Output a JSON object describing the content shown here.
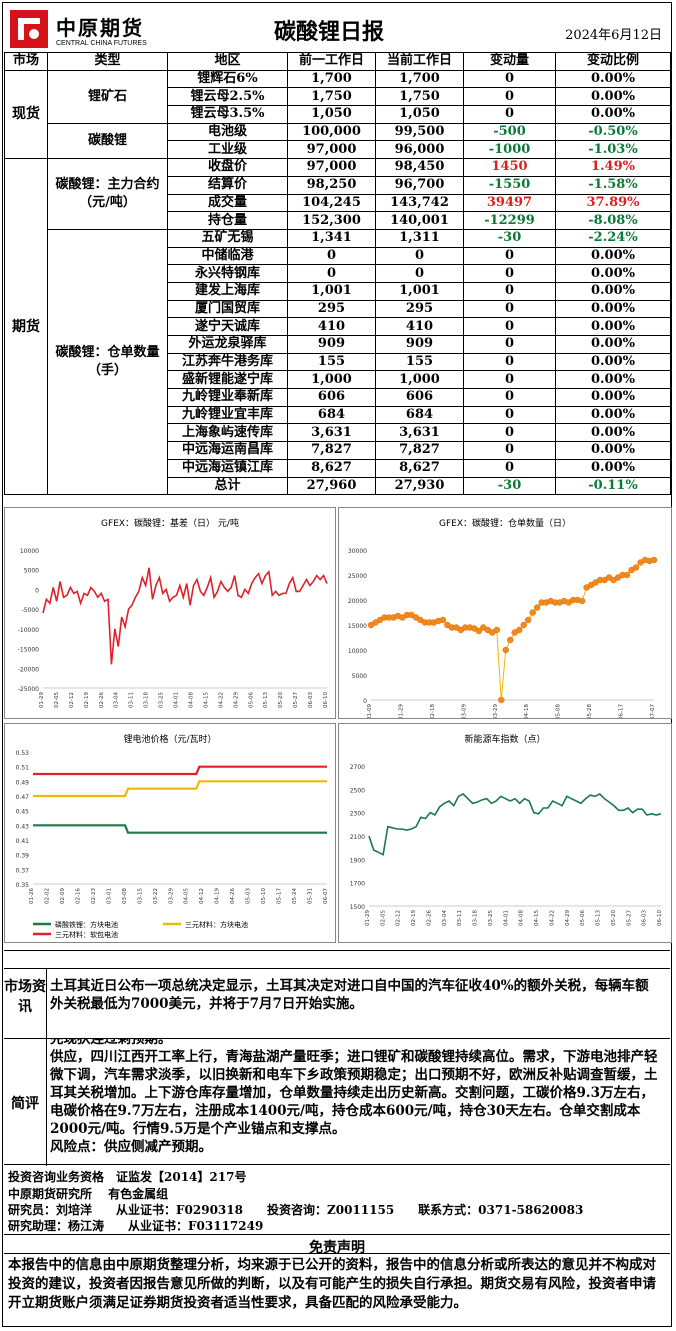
{
  "header": {
    "logo_name": "中原期货",
    "logo_sub": "CENTRAL CHINA FUTURES",
    "title": "碳酸锂日报",
    "date": "2024年6月12日"
  },
  "table": {
    "headers": [
      "市场",
      "类型",
      "地区",
      "前一工作日",
      "当前工作日",
      "变动量",
      "变动比例"
    ],
    "markets": {
      "spot": "现货",
      "futures": "期货"
    },
    "types": {
      "ore": "锂矿石",
      "carbonate": "碳酸锂",
      "main": "碳酸锂：主力合约（元/吨）",
      "warrant": "碳酸锂：仓单数量（手）"
    },
    "spot_rows": [
      {
        "name": "锂辉石6%",
        "prev": "1,700",
        "cur": "1,700",
        "chg": "0",
        "pct": "0.00%",
        "dir": "zero"
      },
      {
        "name": "锂云母2.5%",
        "prev": "1,750",
        "cur": "1,750",
        "chg": "0",
        "pct": "0.00%",
        "dir": "zero"
      },
      {
        "name": "锂云母3.5%",
        "prev": "1,050",
        "cur": "1,050",
        "chg": "0",
        "pct": "0.00%",
        "dir": "zero"
      },
      {
        "name": "电池级",
        "prev": "100,000",
        "cur": "99,500",
        "chg": "-500",
        "pct": "-0.50%",
        "dir": "neg"
      },
      {
        "name": "工业级",
        "prev": "97,000",
        "cur": "96,000",
        "chg": "-1000",
        "pct": "-1.03%",
        "dir": "neg"
      }
    ],
    "main_rows": [
      {
        "name": "收盘价",
        "prev": "97,000",
        "cur": "98,450",
        "chg": "1450",
        "pct": "1.49%",
        "dir": "pos"
      },
      {
        "name": "结算价",
        "prev": "98,250",
        "cur": "96,700",
        "chg": "-1550",
        "pct": "-1.58%",
        "dir": "neg"
      },
      {
        "name": "成交量",
        "prev": "104,245",
        "cur": "143,742",
        "chg": "39497",
        "pct": "37.89%",
        "dir": "pos"
      },
      {
        "name": "持仓量",
        "prev": "152,300",
        "cur": "140,001",
        "chg": "-12299",
        "pct": "-8.08%",
        "dir": "neg"
      }
    ],
    "warrant_rows": [
      {
        "name": "五矿无锡",
        "prev": "1,341",
        "cur": "1,311",
        "chg": "-30",
        "pct": "-2.24%",
        "dir": "neg"
      },
      {
        "name": "中储临港",
        "prev": "0",
        "cur": "0",
        "chg": "0",
        "pct": "0.00%",
        "dir": "zero"
      },
      {
        "name": "永兴特钢库",
        "prev": "0",
        "cur": "0",
        "chg": "0",
        "pct": "0.00%",
        "dir": "zero"
      },
      {
        "name": "建发上海库",
        "prev": "1,001",
        "cur": "1,001",
        "chg": "0",
        "pct": "0.00%",
        "dir": "zero"
      },
      {
        "name": "厦门国贸库",
        "prev": "295",
        "cur": "295",
        "chg": "0",
        "pct": "0.00%",
        "dir": "zero"
      },
      {
        "name": "遂宁天诚库",
        "prev": "410",
        "cur": "410",
        "chg": "0",
        "pct": "0.00%",
        "dir": "zero"
      },
      {
        "name": "外运龙泉驿库",
        "prev": "909",
        "cur": "909",
        "chg": "0",
        "pct": "0.00%",
        "dir": "zero"
      },
      {
        "name": "江苏奔牛港务库",
        "prev": "155",
        "cur": "155",
        "chg": "0",
        "pct": "0.00%",
        "dir": "zero"
      },
      {
        "name": "盛新锂能遂宁库",
        "prev": "1,000",
        "cur": "1,000",
        "chg": "0",
        "pct": "0.00%",
        "dir": "zero"
      },
      {
        "name": "九岭锂业奉新库",
        "prev": "606",
        "cur": "606",
        "chg": "0",
        "pct": "0.00%",
        "dir": "zero"
      },
      {
        "name": "九岭锂业宜丰库",
        "prev": "684",
        "cur": "684",
        "chg": "0",
        "pct": "0.00%",
        "dir": "zero"
      },
      {
        "name": "上海象屿速传库",
        "prev": "3,631",
        "cur": "3,631",
        "chg": "0",
        "pct": "0.00%",
        "dir": "zero"
      },
      {
        "name": "中远海运南昌库",
        "prev": "7,827",
        "cur": "7,827",
        "chg": "0",
        "pct": "0.00%",
        "dir": "zero"
      },
      {
        "name": "中远海运镇江库",
        "prev": "8,627",
        "cur": "8,627",
        "chg": "0",
        "pct": "0.00%",
        "dir": "zero"
      },
      {
        "name": "总计",
        "prev": "27,960",
        "cur": "27,930",
        "chg": "-30",
        "pct": "-0.11%",
        "dir": "neg"
      }
    ]
  },
  "chart_data": [
    {
      "type": "line",
      "title": "GFEX：碳酸锂：基差（日） 元/吨",
      "ylim": [
        -25000,
        10000
      ],
      "yticks": [
        "10000",
        "5000",
        "0",
        "-5000",
        "-10000",
        "-15000",
        "-20000",
        "-25000"
      ],
      "xticks": [
        "01-29",
        "02-05",
        "02-12",
        "02-19",
        "02-26",
        "03-04",
        "03-11",
        "03-18",
        "03-25",
        "04-01",
        "04-08",
        "04-15",
        "04-22",
        "04-29",
        "05-06",
        "05-13",
        "05-20",
        "05-27",
        "06-03",
        "06-10"
      ],
      "color": "#e0202a",
      "values": [
        -6000,
        -2500,
        -3500,
        500,
        -3000,
        2000,
        -2000,
        -1500,
        500,
        -1000,
        -500,
        -3500,
        -1000,
        -1500,
        500,
        -500,
        -2000,
        -1000,
        -3000,
        -2500,
        -19000,
        -10000,
        -14500,
        -7000,
        -9500,
        -5000,
        -4000,
        -2000,
        -500,
        3000,
        1000,
        5500,
        -2500,
        1000,
        3000,
        -1000,
        0,
        -3000,
        -2000,
        -1500,
        1000,
        -2000,
        1500,
        -4000,
        1000,
        2500,
        -500,
        -1500,
        500,
        3000,
        -2000,
        -500,
        2000,
        500,
        -500,
        500,
        3500,
        -1500,
        -2000,
        0,
        -1000,
        1500,
        3000,
        4000,
        1500,
        3500,
        4500,
        -1500,
        -500,
        -1500,
        -1000,
        -1000,
        1500,
        3000,
        -500,
        -500,
        1000,
        2500,
        1000,
        2000,
        3500,
        2500,
        3500,
        1500
      ]
    },
    {
      "type": "scatter",
      "title": "GFEX：碳酸锂：仓单数量（日）",
      "ylim": [
        0,
        30000
      ],
      "yticks": [
        "30000",
        "25000",
        "20000",
        "15000",
        "10000",
        "5000",
        "0"
      ],
      "xticks": [
        "01-09",
        "01-29",
        "02-18",
        "03-09",
        "03-29",
        "04-18",
        "05-08",
        "05-28",
        "06-17",
        "07-07"
      ],
      "color": "#f08a1a",
      "values": [
        15000,
        15500,
        16000,
        16500,
        16500,
        16500,
        16800,
        16500,
        17000,
        17000,
        16500,
        16000,
        15500,
        15500,
        15500,
        15800,
        16000,
        15000,
        14500,
        14500,
        14000,
        14500,
        14500,
        14300,
        13800,
        14500,
        14000,
        13500,
        14000,
        0,
        10000,
        12000,
        13500,
        14000,
        15000,
        16000,
        17500,
        18500,
        19500,
        19500,
        19800,
        19500,
        19500,
        19800,
        19500,
        20000,
        20000,
        19800,
        22500,
        23000,
        23500,
        24000,
        24000,
        24500,
        24000,
        24500,
        25000,
        25000,
        26000,
        26500,
        27500,
        28000,
        27800,
        28000
      ]
    },
    {
      "type": "line",
      "title": "锂电池价格（元/瓦时）",
      "ylim": [
        0.35,
        0.53
      ],
      "yticks": [
        "0.53",
        "0.51",
        "0.49",
        "0.47",
        "0.45",
        "0.43",
        "0.41",
        "0.39",
        "0.37",
        "0.35"
      ],
      "xticks": [
        "01-26",
        "02-02",
        "02-09",
        "02-16",
        "02-23",
        "03-01",
        "03-08",
        "03-15",
        "03-22",
        "03-29",
        "04-05",
        "04-12",
        "04-19",
        "04-26",
        "05-03",
        "05-10",
        "05-17",
        "05-24",
        "05-31",
        "06-07"
      ],
      "series": [
        {
          "name": "磷酸铁锂：方块电池",
          "color": "#1a7a4a",
          "values": [
            0.43,
            0.43,
            0.43,
            0.43,
            0.43,
            0.43,
            0.43,
            0.43,
            0.43,
            0.43,
            0.43,
            0.43,
            0.43,
            0.43,
            0.43,
            0.43,
            0.43,
            0.43,
            0.43,
            0.43,
            0.43,
            0.43,
            0.43,
            0.43,
            0.43,
            0.43,
            0.43,
            0.43,
            0.43,
            0.43,
            0.43,
            0.43,
            0.42,
            0.42,
            0.42,
            0.42,
            0.42,
            0.42,
            0.42,
            0.42,
            0.42,
            0.42,
            0.42,
            0.42,
            0.42,
            0.42,
            0.42,
            0.42,
            0.42,
            0.42,
            0.42,
            0.42,
            0.42,
            0.42,
            0.42,
            0.42,
            0.42,
            0.42,
            0.42,
            0.42,
            0.42,
            0.42,
            0.42,
            0.42,
            0.42,
            0.42,
            0.42,
            0.42,
            0.42,
            0.42,
            0.42,
            0.42,
            0.42,
            0.42,
            0.42,
            0.42,
            0.42,
            0.42,
            0.42,
            0.42,
            0.42,
            0.42,
            0.42,
            0.42,
            0.42,
            0.42,
            0.42,
            0.42,
            0.42,
            0.42,
            0.42,
            0.42,
            0.42,
            0.42,
            0.42,
            0.42,
            0.42,
            0.42,
            0.42,
            0.42
          ]
        },
        {
          "name": "三元材料：方块电池",
          "color": "#f0b800",
          "values": [
            0.47,
            0.47,
            0.47,
            0.47,
            0.47,
            0.47,
            0.47,
            0.47,
            0.47,
            0.47,
            0.47,
            0.47,
            0.47,
            0.47,
            0.47,
            0.47,
            0.47,
            0.47,
            0.47,
            0.47,
            0.47,
            0.47,
            0.47,
            0.47,
            0.47,
            0.47,
            0.47,
            0.47,
            0.47,
            0.47,
            0.47,
            0.47,
            0.48,
            0.48,
            0.48,
            0.48,
            0.48,
            0.48,
            0.48,
            0.48,
            0.48,
            0.48,
            0.48,
            0.48,
            0.48,
            0.48,
            0.48,
            0.48,
            0.48,
            0.48,
            0.48,
            0.48,
            0.48,
            0.48,
            0.48,
            0.48,
            0.49,
            0.49,
            0.49,
            0.49,
            0.49,
            0.49,
            0.49,
            0.49,
            0.49,
            0.49,
            0.49,
            0.49,
            0.49,
            0.49,
            0.49,
            0.49,
            0.49,
            0.49,
            0.49,
            0.49,
            0.49,
            0.49,
            0.49,
            0.49,
            0.49,
            0.49,
            0.49,
            0.49,
            0.49,
            0.49,
            0.49,
            0.49,
            0.49,
            0.49,
            0.49,
            0.49,
            0.49,
            0.49,
            0.49,
            0.49,
            0.49,
            0.49,
            0.49,
            0.49
          ]
        },
        {
          "name": "三元材料：软包电池",
          "color": "#e0202a",
          "values": [
            0.5,
            0.5,
            0.5,
            0.5,
            0.5,
            0.5,
            0.5,
            0.5,
            0.5,
            0.5,
            0.5,
            0.5,
            0.5,
            0.5,
            0.5,
            0.5,
            0.5,
            0.5,
            0.5,
            0.5,
            0.5,
            0.5,
            0.5,
            0.5,
            0.5,
            0.5,
            0.5,
            0.5,
            0.5,
            0.5,
            0.5,
            0.5,
            0.5,
            0.5,
            0.5,
            0.5,
            0.5,
            0.5,
            0.5,
            0.5,
            0.5,
            0.5,
            0.5,
            0.5,
            0.5,
            0.5,
            0.5,
            0.5,
            0.5,
            0.5,
            0.5,
            0.5,
            0.5,
            0.5,
            0.5,
            0.5,
            0.51,
            0.51,
            0.51,
            0.51,
            0.51,
            0.51,
            0.51,
            0.51,
            0.51,
            0.51,
            0.51,
            0.51,
            0.51,
            0.51,
            0.51,
            0.51,
            0.51,
            0.51,
            0.51,
            0.51,
            0.51,
            0.51,
            0.51,
            0.51,
            0.51,
            0.51,
            0.51,
            0.51,
            0.51,
            0.51,
            0.51,
            0.51,
            0.51,
            0.51,
            0.51,
            0.51,
            0.51,
            0.51,
            0.51,
            0.51,
            0.51,
            0.51,
            0.51,
            0.51
          ]
        }
      ]
    },
    {
      "type": "line",
      "title": "新能源车指数（点）",
      "ylim": [
        1500,
        2700
      ],
      "yticks": [
        "2700",
        "2500",
        "2300",
        "2100",
        "1900",
        "1700",
        "1500"
      ],
      "xticks": [
        "01-29",
        "02-05",
        "02-12",
        "02-19",
        "02-26",
        "03-04",
        "03-11",
        "03-18",
        "03-25",
        "04-01",
        "04-08",
        "04-15",
        "04-22",
        "04-29",
        "05-06",
        "05-13",
        "05-20",
        "05-27",
        "06-03",
        "06-10"
      ],
      "color": "#1a7a4a",
      "values": [
        2100,
        1980,
        1960,
        1940,
        2180,
        2170,
        2160,
        2160,
        2150,
        2160,
        2180,
        2260,
        2250,
        2300,
        2280,
        2350,
        2380,
        2400,
        2360,
        2440,
        2460,
        2420,
        2380,
        2390,
        2410,
        2420,
        2380,
        2400,
        2440,
        2420,
        2400,
        2420,
        2380,
        2420,
        2400,
        2300,
        2290,
        2340,
        2340,
        2400,
        2380,
        2360,
        2440,
        2420,
        2400,
        2380,
        2420,
        2450,
        2440,
        2460,
        2420,
        2390,
        2360,
        2320,
        2320,
        2340,
        2300,
        2330,
        2330,
        2280,
        2290,
        2280,
        2290
      ]
    }
  ],
  "news": {
    "label": "市场资讯",
    "text": "土耳其近日公布一项总统决定显示，土耳其决定对进口自中国的汽车征收40%的额外关税，每辆车额外关税最低为7000美元，并将于7月7日开始实施。"
  },
  "review": {
    "label": "简评",
    "cut": "完现狄连过剩预期。",
    "text": "供应，四川江西开工率上行，青海盐湖产量旺季；进口锂矿和碳酸锂持续高位。需求，下游电池排产轻微下调，汽车需求淡季，以旧换新和电车下乡政策预期稳定；出口预期不好，欧洲反补贴调查暂缓，土耳其关税增加。上下游仓库存量增加，仓单数量持续走出历史新高。交割问题，工碳价格9.3万左右，电碳价格在9.7万左右，注册成本1400元/吨，持仓成本600元/吨，持仓30天左右。仓单交割成本2000元/吨。行情9.5万是个产业锚点和支撑点。",
    "risk": "风险点：供应侧减产预期。"
  },
  "footer": {
    "line1": "投资咨询业务资格　证监发【2014】217号",
    "line2": "中原期货研究所　 有色金属组",
    "line3": "研究员：刘培洋　　从业证书：F0290318　　投资咨询：Z0011155　　联系方式：0371-58620083",
    "line4": "研究助理：杨江涛　　从业证书：F03117249",
    "disclaimer_title": "免责声明",
    "disclaimer": "本报告中的信息由中原期货整理分析，均来源于已公开的资料，报告中的信息分析或所表达的意见并不构成对投资的建议，投资者因报告意见所做的判断，以及有可能产生的损失自行承担。期货交易有风险，投资者申请开立期货账户须满足证券期货投资者适当性要求，具备匹配的风险承受能力。"
  }
}
